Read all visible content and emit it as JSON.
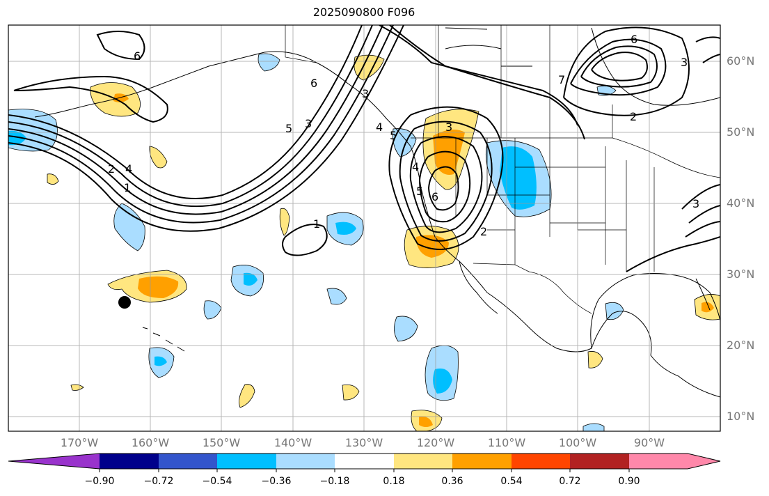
{
  "title": "2025090800 F096",
  "lon_labels": [
    "170°W",
    "160°W",
    "150°W",
    "140°W",
    "130°W",
    "120°W",
    "110°W",
    "100°W",
    "90°W"
  ],
  "lat_labels": [
    "60°N",
    "50°N",
    "40°N",
    "30°N",
    "20°N",
    "10°N"
  ],
  "colorbar": {
    "ticks": [
      "−0.90",
      "−0.72",
      "−0.54",
      "−0.36",
      "−0.18",
      "0.18",
      "0.36",
      "0.54",
      "0.72",
      "0.90"
    ],
    "colors": [
      "#9933cc",
      "#00008b",
      "#3355cc",
      "#00bfff",
      "#aaddff",
      "#ffffff",
      "#ffe680",
      "#ffa000",
      "#ff4500",
      "#b22222",
      "#ff88aa"
    ]
  },
  "contour_labels": [
    "6",
    "3",
    "5",
    "3",
    "2",
    "4",
    "1",
    "1",
    "3",
    "4",
    "5",
    "6",
    "2",
    "4",
    "5",
    "6",
    "7",
    "2",
    "3",
    "6",
    "3"
  ],
  "marker": "point"
}
